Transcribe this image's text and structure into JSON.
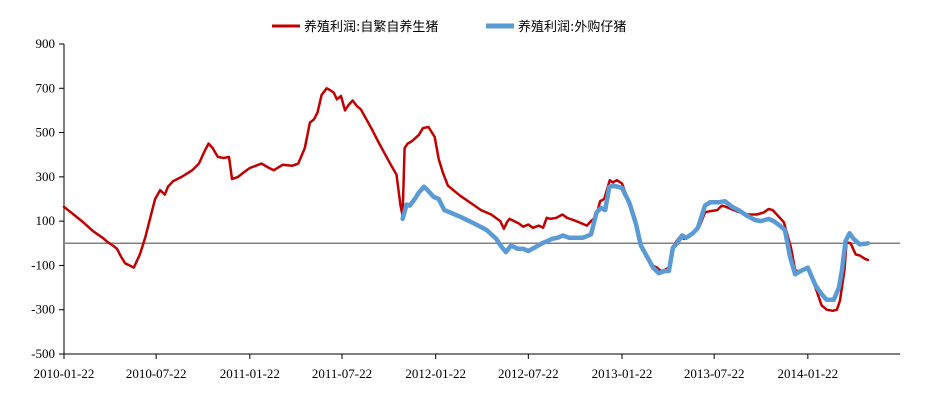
{
  "chart_data": {
    "type": "line",
    "title": "",
    "xlabel": "",
    "ylabel": "",
    "ylim": [
      -500,
      900
    ],
    "yticks": [
      900,
      700,
      500,
      300,
      100,
      -100,
      -300,
      -500
    ],
    "xlim": [
      "2010-01-22",
      "2014-07-22"
    ],
    "xticks": [
      "2010-01-22",
      "2010-07-22",
      "2011-01-22",
      "2011-07-22",
      "2012-01-22",
      "2012-07-22",
      "2013-01-22",
      "2013-07-22",
      "2014-01-22"
    ],
    "reference_line": {
      "y": 0,
      "color": "#808080"
    },
    "legend": {
      "position": "top-center"
    },
    "grid": false,
    "series": [
      {
        "name": "养殖利润:自繁自养生猪",
        "color": "#C00000",
        "points": [
          [
            "2010-01-22",
            165
          ],
          [
            "2010-02-26",
            100
          ],
          [
            "2010-03-20",
            55
          ],
          [
            "2010-04-08",
            25
          ],
          [
            "2010-04-18",
            5
          ],
          [
            "2010-04-28",
            -10
          ],
          [
            "2010-05-06",
            -25
          ],
          [
            "2010-05-14",
            -60
          ],
          [
            "2010-05-22",
            -90
          ],
          [
            "2010-06-08",
            -110
          ],
          [
            "2010-06-20",
            -50
          ],
          [
            "2010-07-01",
            30
          ],
          [
            "2010-07-12",
            130
          ],
          [
            "2010-07-20",
            200
          ],
          [
            "2010-07-30",
            240
          ],
          [
            "2010-08-08",
            220
          ],
          [
            "2010-08-14",
            255
          ],
          [
            "2010-08-24",
            280
          ],
          [
            "2010-09-10",
            300
          ],
          [
            "2010-10-01",
            330
          ],
          [
            "2010-10-14",
            360
          ],
          [
            "2010-10-26",
            420
          ],
          [
            "2010-11-02",
            450
          ],
          [
            "2010-11-10",
            430
          ],
          [
            "2010-11-20",
            390
          ],
          [
            "2010-12-02",
            385
          ],
          [
            "2010-12-12",
            390
          ],
          [
            "2010-12-18",
            290
          ],
          [
            "2010-12-30",
            300
          ],
          [
            "2011-01-10",
            320
          ],
          [
            "2011-01-22",
            340
          ],
          [
            "2011-02-14",
            360
          ],
          [
            "2011-03-01",
            340
          ],
          [
            "2011-03-10",
            330
          ],
          [
            "2011-03-28",
            355
          ],
          [
            "2011-04-15",
            350
          ],
          [
            "2011-04-27",
            360
          ],
          [
            "2011-05-10",
            430
          ],
          [
            "2011-05-20",
            545
          ],
          [
            "2011-05-28",
            560
          ],
          [
            "2011-06-04",
            590
          ],
          [
            "2011-06-12",
            670
          ],
          [
            "2011-06-22",
            700
          ],
          [
            "2011-06-30",
            690
          ],
          [
            "2011-07-06",
            680
          ],
          [
            "2011-07-12",
            650
          ],
          [
            "2011-07-20",
            665
          ],
          [
            "2011-07-28",
            600
          ],
          [
            "2011-08-04",
            625
          ],
          [
            "2011-08-12",
            645
          ],
          [
            "2011-08-20",
            620
          ],
          [
            "2011-08-28",
            605
          ],
          [
            "2011-09-08",
            560
          ],
          [
            "2011-09-20",
            510
          ],
          [
            "2011-10-01",
            460
          ],
          [
            "2011-10-15",
            400
          ],
          [
            "2011-10-27",
            350
          ],
          [
            "2011-11-06",
            310
          ],
          [
            "2011-11-14",
            170
          ],
          [
            "2011-11-18",
            125
          ],
          [
            "2011-11-22",
            430
          ],
          [
            "2011-11-28",
            450
          ],
          [
            "2011-12-06",
            460
          ],
          [
            "2011-12-20",
            490
          ],
          [
            "2011-12-28",
            520
          ],
          [
            "2012-01-08",
            525
          ],
          [
            "2012-01-20",
            480
          ],
          [
            "2012-01-28",
            380
          ],
          [
            "2012-02-05",
            320
          ],
          [
            "2012-02-15",
            260
          ],
          [
            "2012-03-10",
            215
          ],
          [
            "2012-04-01",
            180
          ],
          [
            "2012-04-20",
            150
          ],
          [
            "2012-05-10",
            130
          ],
          [
            "2012-05-28",
            100
          ],
          [
            "2012-06-04",
            65
          ],
          [
            "2012-06-10",
            95
          ],
          [
            "2012-06-15",
            110
          ],
          [
            "2012-06-24",
            100
          ],
          [
            "2012-07-03",
            90
          ],
          [
            "2012-07-12",
            75
          ],
          [
            "2012-07-22",
            85
          ],
          [
            "2012-07-31",
            70
          ],
          [
            "2012-08-12",
            80
          ],
          [
            "2012-08-20",
            70
          ],
          [
            "2012-08-27",
            115
          ],
          [
            "2012-09-04",
            110
          ],
          [
            "2012-09-15",
            115
          ],
          [
            "2012-09-27",
            130
          ],
          [
            "2012-10-06",
            115
          ],
          [
            "2012-10-24",
            100
          ],
          [
            "2012-11-14",
            80
          ],
          [
            "2012-11-22",
            100
          ],
          [
            "2012-12-02",
            120
          ],
          [
            "2012-12-10",
            190
          ],
          [
            "2012-12-18",
            200
          ],
          [
            "2012-12-22",
            230
          ],
          [
            "2012-12-29",
            285
          ],
          [
            "2013-01-04",
            275
          ],
          [
            "2013-01-12",
            285
          ],
          [
            "2013-01-22",
            270
          ],
          [
            "2013-02-04",
            190
          ],
          [
            "2013-02-18",
            80
          ],
          [
            "2013-02-28",
            -10
          ],
          [
            "2013-03-10",
            -60
          ],
          [
            "2013-03-22",
            -100
          ],
          [
            "2013-04-01",
            -110
          ],
          [
            "2013-04-08",
            -125
          ],
          [
            "2013-04-16",
            -120
          ],
          [
            "2013-04-24",
            -110
          ],
          [
            "2013-05-06",
            0
          ],
          [
            "2013-05-16",
            30
          ],
          [
            "2013-05-24",
            20
          ],
          [
            "2013-06-04",
            40
          ],
          [
            "2013-06-14",
            55
          ],
          [
            "2013-06-24",
            80
          ],
          [
            "2013-07-04",
            140
          ],
          [
            "2013-07-14",
            145
          ],
          [
            "2013-07-28",
            150
          ],
          [
            "2013-08-06",
            170
          ],
          [
            "2013-08-14",
            165
          ],
          [
            "2013-08-24",
            155
          ],
          [
            "2013-09-10",
            140
          ],
          [
            "2013-09-26",
            130
          ],
          [
            "2013-10-14",
            130
          ],
          [
            "2013-10-28",
            140
          ],
          [
            "2013-11-06",
            155
          ],
          [
            "2013-11-14",
            150
          ],
          [
            "2013-11-26",
            120
          ],
          [
            "2013-12-06",
            95
          ],
          [
            "2013-12-20",
            -20
          ],
          [
            "2013-12-28",
            -120
          ],
          [
            "2014-01-06",
            -130
          ],
          [
            "2014-01-14",
            -120
          ],
          [
            "2014-01-22",
            -110
          ],
          [
            "2014-02-06",
            -200
          ],
          [
            "2014-02-18",
            -280
          ],
          [
            "2014-02-28",
            -300
          ],
          [
            "2014-03-12",
            -305
          ],
          [
            "2014-03-20",
            -300
          ],
          [
            "2014-03-26",
            -260
          ],
          [
            "2014-04-04",
            -120
          ],
          [
            "2014-04-08",
            5
          ],
          [
            "2014-04-16",
            0
          ],
          [
            "2014-04-26",
            -50
          ],
          [
            "2014-05-04",
            -55
          ],
          [
            "2014-05-14",
            -70
          ],
          [
            "2014-05-20",
            -75
          ]
        ]
      },
      {
        "name": "养殖利润:外购仔猪",
        "color": "#5B9BD5",
        "points": [
          [
            "2011-11-18",
            110
          ],
          [
            "2011-11-26",
            175
          ],
          [
            "2011-12-02",
            170
          ],
          [
            "2011-12-12",
            200
          ],
          [
            "2011-12-20",
            230
          ],
          [
            "2011-12-30",
            255
          ],
          [
            "2012-01-06",
            240
          ],
          [
            "2012-01-18",
            210
          ],
          [
            "2012-01-28",
            200
          ],
          [
            "2012-02-08",
            150
          ],
          [
            "2012-03-10",
            120
          ],
          [
            "2012-04-06",
            90
          ],
          [
            "2012-05-01",
            60
          ],
          [
            "2012-05-20",
            20
          ],
          [
            "2012-05-30",
            -15
          ],
          [
            "2012-06-08",
            -40
          ],
          [
            "2012-06-18",
            -10
          ],
          [
            "2012-07-01",
            -25
          ],
          [
            "2012-07-12",
            -25
          ],
          [
            "2012-07-22",
            -35
          ],
          [
            "2012-08-03",
            -20
          ],
          [
            "2012-08-18",
            0
          ],
          [
            "2012-08-28",
            10
          ],
          [
            "2012-09-06",
            20
          ],
          [
            "2012-09-17",
            25
          ],
          [
            "2012-09-28",
            35
          ],
          [
            "2012-10-10",
            25
          ],
          [
            "2012-11-06",
            25
          ],
          [
            "2012-11-22",
            40
          ],
          [
            "2012-12-03",
            140
          ],
          [
            "2012-12-12",
            160
          ],
          [
            "2012-12-20",
            150
          ],
          [
            "2012-12-28",
            255
          ],
          [
            "2013-01-06",
            260
          ],
          [
            "2013-01-22",
            250
          ],
          [
            "2013-02-06",
            180
          ],
          [
            "2013-02-18",
            90
          ],
          [
            "2013-02-28",
            -10
          ],
          [
            "2013-03-12",
            -60
          ],
          [
            "2013-03-24",
            -110
          ],
          [
            "2013-04-04",
            -135
          ],
          [
            "2013-04-16",
            -125
          ],
          [
            "2013-04-24",
            -125
          ],
          [
            "2013-05-02",
            -20
          ],
          [
            "2013-05-10",
            0
          ],
          [
            "2013-05-20",
            35
          ],
          [
            "2013-05-28",
            25
          ],
          [
            "2013-06-10",
            45
          ],
          [
            "2013-06-20",
            70
          ],
          [
            "2013-07-04",
            170
          ],
          [
            "2013-07-14",
            185
          ],
          [
            "2013-07-30",
            185
          ],
          [
            "2013-08-12",
            190
          ],
          [
            "2013-08-26",
            165
          ],
          [
            "2013-09-08",
            150
          ],
          [
            "2013-09-24",
            125
          ],
          [
            "2013-10-10",
            105
          ],
          [
            "2013-10-22",
            100
          ],
          [
            "2013-11-06",
            110
          ],
          [
            "2013-11-16",
            100
          ],
          [
            "2013-11-28",
            80
          ],
          [
            "2013-12-08",
            60
          ],
          [
            "2013-12-18",
            -60
          ],
          [
            "2013-12-28",
            -140
          ],
          [
            "2014-01-08",
            -125
          ],
          [
            "2014-01-22",
            -110
          ],
          [
            "2014-02-06",
            -190
          ],
          [
            "2014-02-18",
            -230
          ],
          [
            "2014-02-28",
            -255
          ],
          [
            "2014-03-14",
            -255
          ],
          [
            "2014-03-24",
            -200
          ],
          [
            "2014-03-30",
            -120
          ],
          [
            "2014-04-06",
            10
          ],
          [
            "2014-04-14",
            45
          ],
          [
            "2014-04-22",
            20
          ],
          [
            "2014-05-04",
            -5
          ],
          [
            "2014-05-20",
            0
          ]
        ]
      }
    ]
  }
}
